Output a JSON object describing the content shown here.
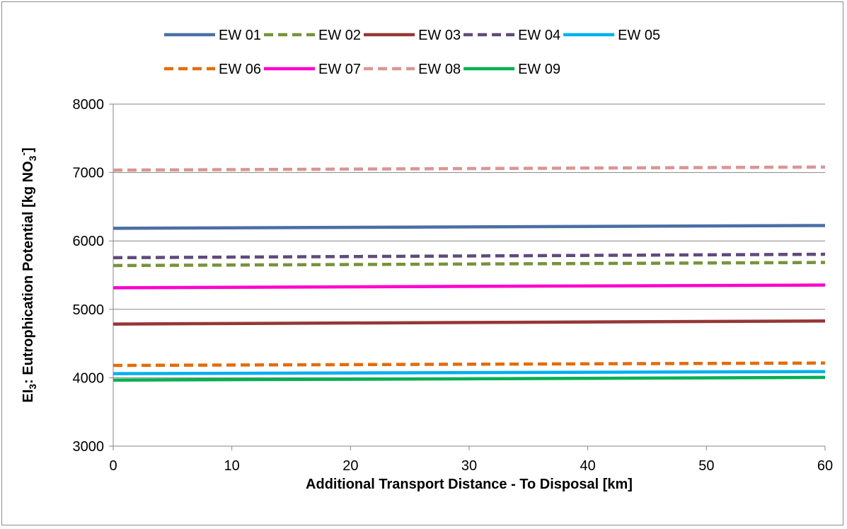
{
  "chart_data": {
    "type": "line",
    "xlabel": "Additional Transport Distance - To Disposal [km]",
    "ylabel": {
      "parts": [
        {
          "text": "EI",
          "shift": "none"
        },
        {
          "text": "3",
          "shift": "sub"
        },
        {
          "text": ": Eutrophication Potential [kg NO",
          "shift": "none"
        },
        {
          "text": "3",
          "shift": "sub"
        },
        {
          "text": "-",
          "shift": "super"
        },
        {
          "text": "]",
          "shift": "none"
        }
      ]
    },
    "xlim": [
      0,
      60
    ],
    "ylim": [
      3000,
      8000
    ],
    "x_ticks": [
      "0",
      "10",
      "20",
      "30",
      "40",
      "50",
      "60"
    ],
    "y_ticks": [
      "3000",
      "4000",
      "5000",
      "6000",
      "7000",
      "8000"
    ],
    "grid": {
      "horizontal": true,
      "vertical": false
    },
    "legend_position": "top",
    "x": [
      0,
      60
    ],
    "series": [
      {
        "name": "EW 01",
        "values": [
          6185,
          6225
        ],
        "color": "#4a6fa5",
        "dashed": false
      },
      {
        "name": "EW 02",
        "values": [
          5640,
          5685
        ],
        "color": "#77933c",
        "dashed": true
      },
      {
        "name": "EW 03",
        "values": [
          4785,
          4830
        ],
        "color": "#953735",
        "dashed": false
      },
      {
        "name": "EW 04",
        "values": [
          5755,
          5805
        ],
        "color": "#604a7b",
        "dashed": true
      },
      {
        "name": "EW 05",
        "values": [
          4060,
          4090
        ],
        "color": "#00b0f0",
        "dashed": false
      },
      {
        "name": "EW 06",
        "values": [
          4180,
          4215
        ],
        "color": "#e46c0a",
        "dashed": true
      },
      {
        "name": "EW 07",
        "values": [
          5315,
          5355
        ],
        "color": "#ff00cc",
        "dashed": false
      },
      {
        "name": "EW 08",
        "values": [
          7035,
          7080
        ],
        "color": "#d99694",
        "dashed": true
      },
      {
        "name": "EW 09",
        "values": [
          3965,
          4005
        ],
        "color": "#00b050",
        "dashed": false
      }
    ]
  }
}
